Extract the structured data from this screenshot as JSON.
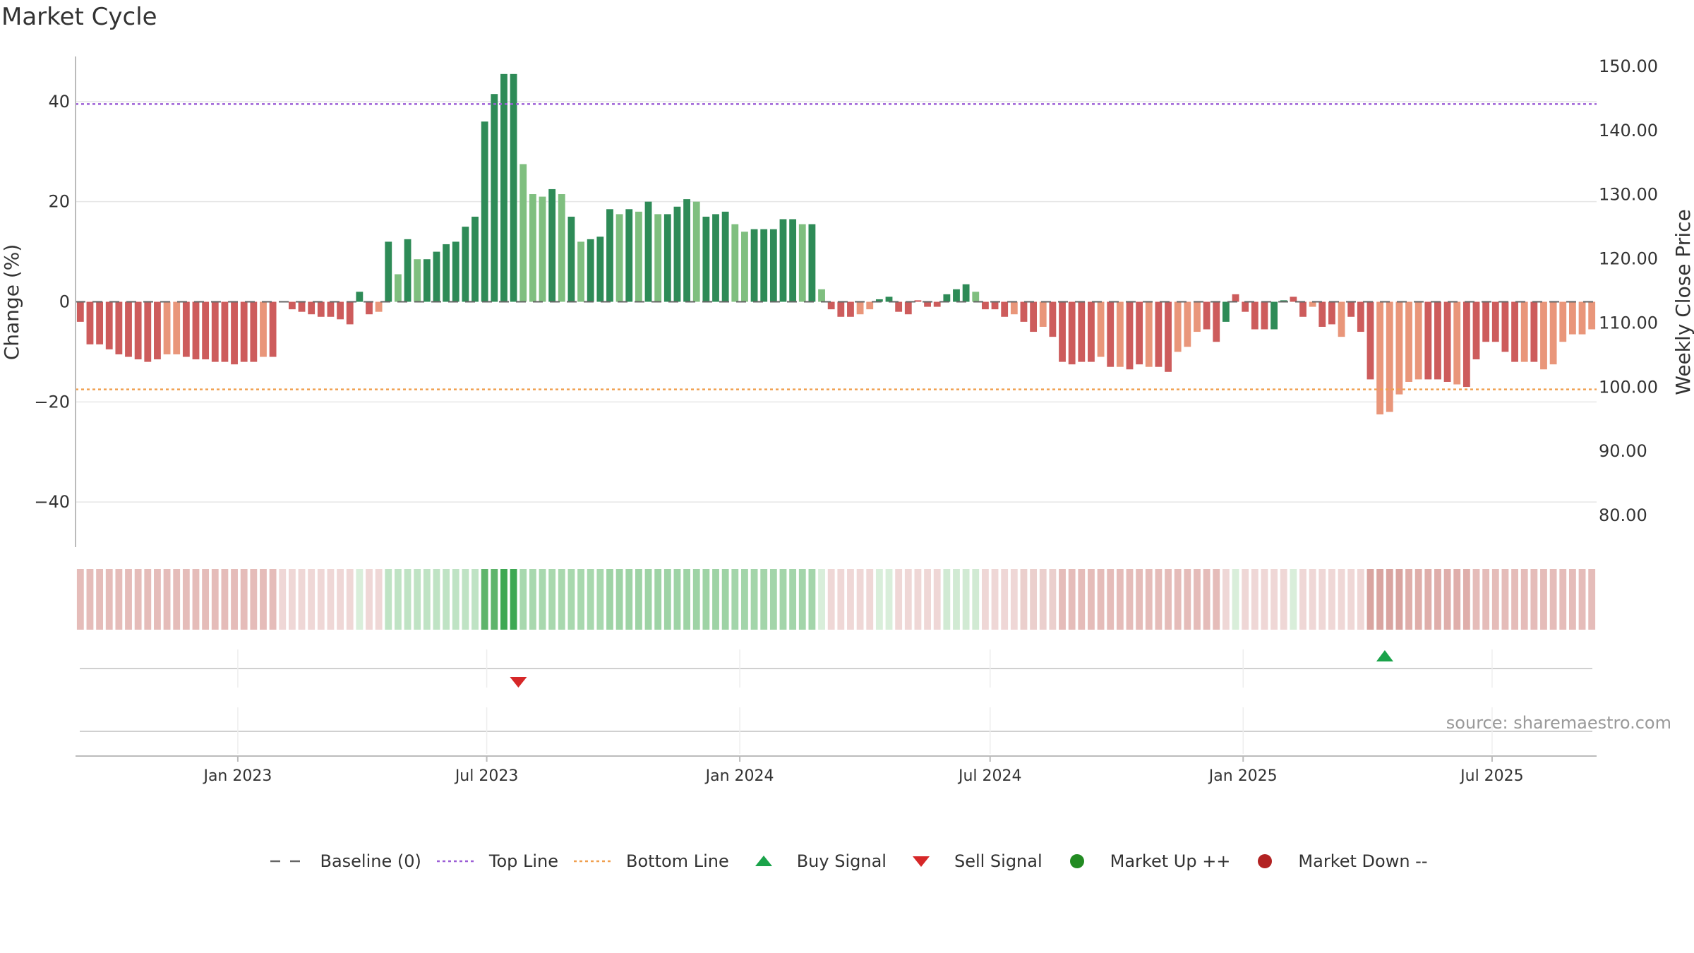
{
  "title": "Market Cycle",
  "source": "source: sharemaestro.com",
  "colors": {
    "strong_up": "#2e8b57",
    "weak_up": "#7fbf7f",
    "strong_down": "#cd5c5c",
    "weak_down": "#e9967a",
    "top_line": "#9c5fd6",
    "bottom_line": "#f0a050",
    "buy": "#1aa34a",
    "sell": "#d62728",
    "market_up": "#228b22",
    "market_down": "#b22222",
    "grid": "#e6e6e6",
    "axis": "#bbbbbb"
  },
  "legend": [
    {
      "symbol": "dash-gray",
      "label": "Baseline (0)"
    },
    {
      "symbol": "dot-purple",
      "label": "Top Line"
    },
    {
      "symbol": "dot-orange",
      "label": "Bottom Line"
    },
    {
      "symbol": "triangle-up-green",
      "label": "Buy Signal"
    },
    {
      "symbol": "triangle-down-red",
      "label": "Sell Signal"
    },
    {
      "symbol": "circle-green",
      "label": "Market Up ++"
    },
    {
      "symbol": "circle-red",
      "label": "Market Down --"
    }
  ],
  "chart_data": {
    "type": "bar",
    "y_axis_left": {
      "label": "Change (%)",
      "range": [
        -49,
        49
      ],
      "ticks": [
        -40,
        -20,
        0,
        20,
        40
      ],
      "tick_labels": [
        "−40",
        "−20",
        "0",
        "20",
        "40"
      ]
    },
    "y_axis_right": {
      "label": "Weekly Close Price",
      "ticks": [
        80,
        90,
        100,
        110,
        120,
        130,
        140,
        150
      ],
      "tick_labels": [
        "80.00",
        "90.00",
        "100.00",
        "110.00",
        "120.00",
        "130.00",
        "140.00",
        "150.00"
      ]
    },
    "x_axis": {
      "range": [
        "2022-09-05",
        "2025-09-15"
      ],
      "ticks": [
        "2023-01-01",
        "2023-07-01",
        "2024-01-01",
        "2024-07-01",
        "2025-01-01",
        "2025-07-01"
      ],
      "tick_labels": [
        "Jan 2023",
        "Jul 2023",
        "Jan 2024",
        "Jul 2024",
        "Jan 2025",
        "Jul 2025"
      ]
    },
    "start_date": "2022-09-05",
    "interval_days": 7,
    "top_line": 39.5,
    "bottom_line": -17.5,
    "grid": true,
    "legend_position": "bottom-center",
    "values": [
      -4,
      -8.5,
      -8.5,
      -9.5,
      -10.5,
      -11,
      -11.5,
      -12,
      -11.5,
      -10.5,
      -10.5,
      -11,
      -11.5,
      -11.5,
      -12,
      -12,
      -12.5,
      -12,
      -12,
      -11,
      -11,
      0,
      -1.5,
      -2,
      -2.5,
      -3,
      -3,
      -3.5,
      -4.5,
      2,
      -2.5,
      -2,
      12,
      5.5,
      12.5,
      8.5,
      8.5,
      10,
      11.5,
      12,
      15,
      17,
      36,
      41.5,
      45.5,
      45.5,
      27.5,
      21.5,
      21,
      22.5,
      21.5,
      17,
      12,
      12.5,
      13,
      18.5,
      17.5,
      18.5,
      18,
      20,
      17.5,
      17.5,
      19,
      20.5,
      20,
      17,
      17.5,
      18,
      15.5,
      14,
      14.5,
      14.5,
      14.5,
      16.5,
      16.5,
      15.5,
      15.5,
      2.5,
      -1.5,
      -3,
      -3,
      -2.5,
      -1.5,
      0.5,
      1,
      -2,
      -2.5,
      0.3,
      -1,
      -1,
      1.5,
      2.5,
      3.5,
      2,
      -1.5,
      -1.5,
      -3,
      -2.5,
      -4,
      -6,
      -5,
      -7,
      -12,
      -12.5,
      -12,
      -12,
      -11,
      -13,
      -13,
      -13.5,
      -12.5,
      -13,
      -13,
      -14,
      -10,
      -9,
      -6,
      -5.5,
      -8,
      -4,
      1.5,
      -2,
      -5.5,
      -5.5,
      -5.5,
      0.3,
      1,
      -3,
      -1,
      -5,
      -4.5,
      -7,
      -3,
      -6,
      -15.5,
      -22.5,
      -22,
      -18.5,
      -16,
      -15.5,
      -15.5,
      -15.5,
      -16,
      -16.5,
      -17,
      -11.5,
      -8,
      -8,
      -10,
      -12,
      -12,
      -12,
      -13.5,
      -12.5,
      -8,
      -6.5,
      -6.5,
      -5.5
    ],
    "categories": [
      "sd",
      "sd",
      "sd",
      "sd",
      "sd",
      "sd",
      "sd",
      "sd",
      "sd",
      "wd",
      "wd",
      "sd",
      "sd",
      "sd",
      "sd",
      "sd",
      "sd",
      "sd",
      "sd",
      "wd",
      "sd",
      "sd",
      "sd",
      "sd",
      "sd",
      "sd",
      "sd",
      "sd",
      "sd",
      "su",
      "sd",
      "wd",
      "su",
      "wu",
      "su",
      "wu",
      "su",
      "su",
      "su",
      "su",
      "su",
      "su",
      "su",
      "su",
      "su",
      "su",
      "wu",
      "wu",
      "wu",
      "su",
      "wu",
      "su",
      "wu",
      "su",
      "su",
      "su",
      "wu",
      "su",
      "wu",
      "su",
      "wu",
      "su",
      "su",
      "su",
      "wu",
      "su",
      "su",
      "su",
      "wu",
      "wu",
      "su",
      "su",
      "su",
      "su",
      "su",
      "wu",
      "su",
      "wu",
      "sd",
      "sd",
      "sd",
      "wd",
      "wd",
      "su",
      "su",
      "sd",
      "sd",
      "sd",
      "sd",
      "sd",
      "su",
      "su",
      "su",
      "wu",
      "sd",
      "sd",
      "sd",
      "wd",
      "sd",
      "sd",
      "wd",
      "sd",
      "sd",
      "sd",
      "sd",
      "sd",
      "wd",
      "sd",
      "wd",
      "sd",
      "sd",
      "wd",
      "sd",
      "sd",
      "wd",
      "wd",
      "wd",
      "sd",
      "sd",
      "su",
      "sd",
      "sd",
      "sd",
      "sd",
      "su",
      "su",
      "sd",
      "sd",
      "wd",
      "sd",
      "sd",
      "wd",
      "sd",
      "sd",
      "sd",
      "wd",
      "wd",
      "wd",
      "wd",
      "wd",
      "sd",
      "sd",
      "sd",
      "wd",
      "sd",
      "sd",
      "sd",
      "sd",
      "sd",
      "sd",
      "wd",
      "sd",
      "wd",
      "wd",
      "wd",
      "wd",
      "wd",
      "wd"
    ],
    "strip_colors": [
      "#e5bcb9",
      "#e5bcb9",
      "#e5bcb9",
      "#e5bcb9",
      "#e5bcb9",
      "#e5bcb9",
      "#e5bcb9",
      "#e5bcb9",
      "#e5bcb9",
      "#e5bcb9",
      "#e5bcb9",
      "#e5bcb9",
      "#e5bcb9",
      "#e5bcb9",
      "#e5bcb9",
      "#e5bcb9",
      "#e5bcb9",
      "#e5bcb9",
      "#e5bcb9",
      "#e5bcb9",
      "#e5bcb9",
      "#efd7d6",
      "#efd7d6",
      "#efd7d6",
      "#efd7d6",
      "#efd7d6",
      "#efd7d6",
      "#efd7d6",
      "#efd7d6",
      "#d9eeda",
      "#efd7d6",
      "#efd7d6",
      "#bfe3c4",
      "#bfe3c4",
      "#bfe3c4",
      "#bfe3c4",
      "#bfe3c4",
      "#bfe3c4",
      "#bfe3c4",
      "#bfe3c4",
      "#bfe3c4",
      "#bfe3c4",
      "#5eb46b",
      "#5eb46b",
      "#3da852",
      "#3da852",
      "#a8d8ae",
      "#a8d8ae",
      "#a8d8ae",
      "#a8d8ae",
      "#a8d8ae",
      "#a8d8ae",
      "#a8d8ae",
      "#a8d8ae",
      "#a8d8ae",
      "#9ed3a5",
      "#9ed3a5",
      "#9ed3a5",
      "#9ed3a5",
      "#9ed3a5",
      "#9ed3a5",
      "#9ed3a5",
      "#9ed3a5",
      "#9ed3a5",
      "#9ed3a5",
      "#9ed3a5",
      "#9ed3a5",
      "#9ed3a5",
      "#a3d5aa",
      "#a3d5aa",
      "#a3d5aa",
      "#a3d5aa",
      "#a3d5aa",
      "#a3d5aa",
      "#a3d5aa",
      "#a3d5aa",
      "#a3d5aa",
      "#d9eeda",
      "#efd7d6",
      "#efd7d6",
      "#efd7d6",
      "#efd7d6",
      "#efd7d6",
      "#d9eeda",
      "#d9eeda",
      "#efd7d6",
      "#efd7d6",
      "#efd7d6",
      "#efd7d6",
      "#efd7d6",
      "#d1ead3",
      "#d1ead3",
      "#d1ead3",
      "#d1ead3",
      "#efd7d6",
      "#efd7d6",
      "#efd7d6",
      "#efd7d6",
      "#ebcfcd",
      "#ebcfcd",
      "#ebcfcd",
      "#ebcfcd",
      "#e5bcb9",
      "#e5bcb9",
      "#e5bcb9",
      "#e5bcb9",
      "#e5bcb9",
      "#e5bcb9",
      "#e5bcb9",
      "#e5bcb9",
      "#e5bcb9",
      "#e5bcb9",
      "#e5bcb9",
      "#e5bcb9",
      "#e5bcb9",
      "#e5bcb9",
      "#e5bcb9",
      "#e5bcb9",
      "#e5bcb9",
      "#efd7d6",
      "#d9eeda",
      "#efd7d6",
      "#efd7d6",
      "#efd7d6",
      "#efd7d6",
      "#efd7d6",
      "#d9eeda",
      "#efd7d6",
      "#efd7d6",
      "#efd7d6",
      "#efd7d6",
      "#efd7d6",
      "#efd7d6",
      "#efd7d6",
      "#d9a4a0",
      "#d9a4a0",
      "#d9a4a0",
      "#d9a4a0",
      "#dfaeaa",
      "#dfaeaa",
      "#dfaeaa",
      "#dfaeaa",
      "#dfaeaa",
      "#dfaeaa",
      "#dfaeaa",
      "#e5bcb9",
      "#e5bcb9",
      "#e5bcb9",
      "#e5bcb9",
      "#e5bcb9",
      "#e5bcb9",
      "#e5bcb9",
      "#e5bcb9",
      "#e5bcb9",
      "#e5bcb9",
      "#e5bcb9",
      "#e5bcb9",
      "#e5bcb9"
    ],
    "buy_signals": [
      "2025-04-14"
    ],
    "sell_signals": [
      "2023-07-24"
    ]
  }
}
